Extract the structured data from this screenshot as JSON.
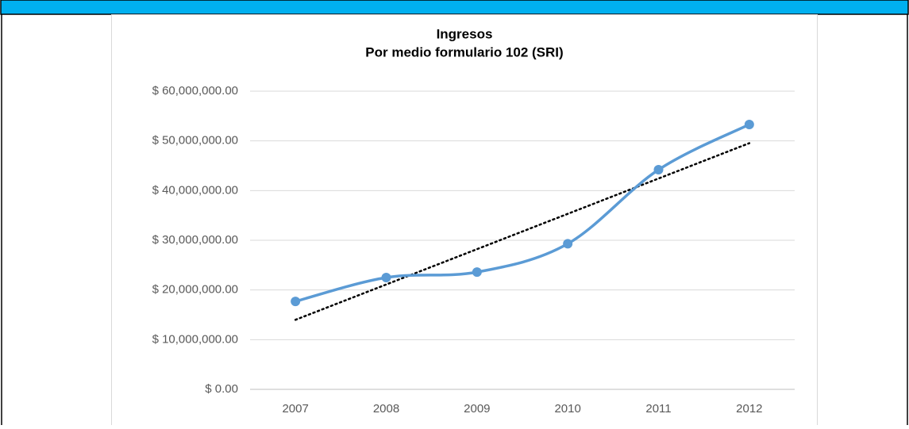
{
  "chart_data": {
    "type": "line",
    "title": "Ingresos",
    "subtitle": "Por medio formulario 102 (SRI)",
    "categories": [
      "2007",
      "2008",
      "2009",
      "2010",
      "2011",
      "2012"
    ],
    "series": [
      {
        "color": "#5b9bd5",
        "values": [
          17700000,
          22500000,
          23600000,
          29300000,
          44200000,
          53300000
        ]
      }
    ],
    "smooth": true,
    "markers": true,
    "trendline": "linear",
    "trendline_color": "#000000",
    "ylim": [
      0,
      60000000
    ],
    "yticks": [
      {
        "value": 0,
        "label": "$ 0.00"
      },
      {
        "value": 10000000,
        "label": "$ 10,000,000.00"
      },
      {
        "value": 20000000,
        "label": "$ 20,000,000.00"
      },
      {
        "value": 30000000,
        "label": "$ 30,000,000.00"
      },
      {
        "value": 40000000,
        "label": "$ 40,000,000.00"
      },
      {
        "value": 50000000,
        "label": "$ 50,000,000.00"
      },
      {
        "value": 60000000,
        "label": "$ 60,000,000.00"
      }
    ],
    "grid": true
  }
}
